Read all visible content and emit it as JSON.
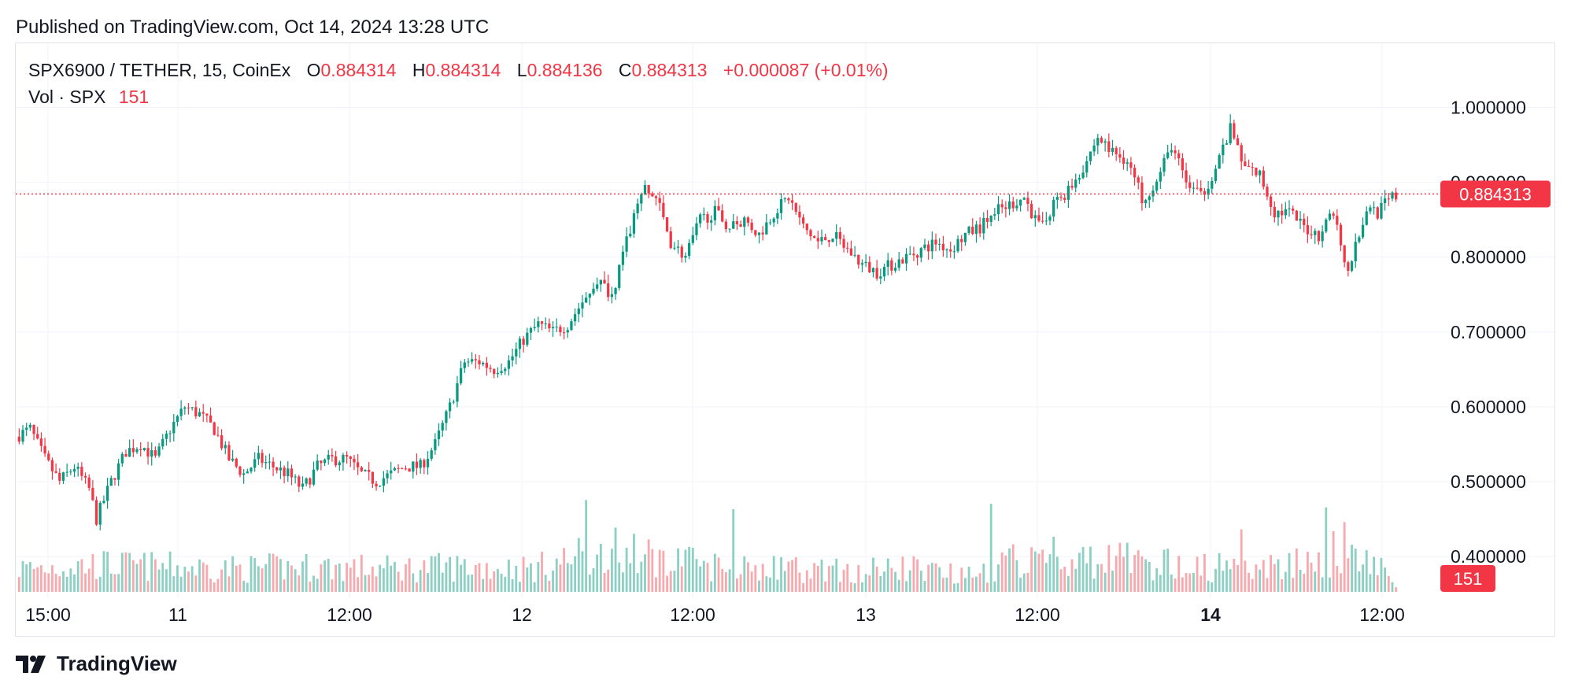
{
  "header": {
    "published": "Published on TradingView.com, Oct 14, 2024 13:28 UTC"
  },
  "legend": {
    "symbol": "SPX6900 / TETHER, 15, CoinEx",
    "o_label": "O",
    "o_value": "0.884314",
    "h_label": "H",
    "h_value": "0.884314",
    "l_label": "L",
    "l_value": "0.884136",
    "c_label": "C",
    "c_value": "0.884313",
    "change": "+0.000087 (+0.01%)",
    "vol_label": "Vol · SPX",
    "vol_value": "151"
  },
  "footer": {
    "brand": "TradingView"
  },
  "colors": {
    "up": "#089981",
    "down": "#f23645",
    "up_vol": "#8ccfc3",
    "down_vol": "#f7a9ad",
    "grid": "#f0f3fa",
    "price_line": "#f23645"
  },
  "chart_data": {
    "type": "candlestick",
    "symbol": "SPX6900 / TETHER",
    "interval": "15",
    "exchange": "CoinEx",
    "price_axis": {
      "ticks": [
        "1.000000",
        "0.900000",
        "0.800000",
        "0.700000",
        "0.600000",
        "0.500000",
        "0.400000"
      ],
      "range": [
        0.36,
        1.07
      ]
    },
    "time_axis": {
      "labels": [
        "15:00",
        "11",
        "12:00",
        "12",
        "12:00",
        "13",
        "12:00",
        "14",
        "12:00"
      ],
      "bold": [
        false,
        false,
        false,
        false,
        false,
        false,
        false,
        true,
        false
      ]
    },
    "last_price": "0.884313",
    "last_volume": "151",
    "price_path": [
      [
        0,
        0.56
      ],
      [
        4,
        0.57
      ],
      [
        8,
        0.53
      ],
      [
        12,
        0.5
      ],
      [
        16,
        0.52
      ],
      [
        20,
        0.49
      ],
      [
        22,
        0.45
      ],
      [
        26,
        0.5
      ],
      [
        30,
        0.54
      ],
      [
        34,
        0.55
      ],
      [
        38,
        0.53
      ],
      [
        42,
        0.57
      ],
      [
        46,
        0.6
      ],
      [
        50,
        0.59
      ],
      [
        54,
        0.57
      ],
      [
        58,
        0.53
      ],
      [
        62,
        0.51
      ],
      [
        66,
        0.53
      ],
      [
        70,
        0.52
      ],
      [
        74,
        0.51
      ],
      [
        78,
        0.49
      ],
      [
        82,
        0.52
      ],
      [
        86,
        0.53
      ],
      [
        90,
        0.53
      ],
      [
        94,
        0.51
      ],
      [
        98,
        0.5
      ],
      [
        102,
        0.51
      ],
      [
        106,
        0.52
      ],
      [
        110,
        0.52
      ],
      [
        114,
        0.55
      ],
      [
        118,
        0.6
      ],
      [
        122,
        0.66
      ],
      [
        126,
        0.66
      ],
      [
        130,
        0.65
      ],
      [
        134,
        0.66
      ],
      [
        138,
        0.69
      ],
      [
        142,
        0.71
      ],
      [
        146,
        0.7
      ],
      [
        150,
        0.71
      ],
      [
        154,
        0.74
      ],
      [
        158,
        0.77
      ],
      [
        162,
        0.75
      ],
      [
        166,
        0.82
      ],
      [
        170,
        0.89
      ],
      [
        174,
        0.88
      ],
      [
        178,
        0.82
      ],
      [
        182,
        0.8
      ],
      [
        186,
        0.85
      ],
      [
        190,
        0.86
      ],
      [
        194,
        0.84
      ],
      [
        198,
        0.85
      ],
      [
        202,
        0.83
      ],
      [
        206,
        0.86
      ],
      [
        210,
        0.88
      ],
      [
        214,
        0.84
      ],
      [
        218,
        0.82
      ],
      [
        222,
        0.83
      ],
      [
        226,
        0.81
      ],
      [
        230,
        0.79
      ],
      [
        234,
        0.78
      ],
      [
        238,
        0.79
      ],
      [
        242,
        0.8
      ],
      [
        246,
        0.81
      ],
      [
        250,
        0.82
      ],
      [
        254,
        0.81
      ],
      [
        258,
        0.83
      ],
      [
        262,
        0.84
      ],
      [
        266,
        0.86
      ],
      [
        270,
        0.87
      ],
      [
        274,
        0.88
      ],
      [
        278,
        0.84
      ],
      [
        282,
        0.87
      ],
      [
        286,
        0.89
      ],
      [
        290,
        0.92
      ],
      [
        294,
        0.96
      ],
      [
        298,
        0.94
      ],
      [
        302,
        0.93
      ],
      [
        306,
        0.88
      ],
      [
        310,
        0.9
      ],
      [
        314,
        0.95
      ],
      [
        318,
        0.9
      ],
      [
        322,
        0.88
      ],
      [
        326,
        0.92
      ],
      [
        330,
        0.97
      ],
      [
        334,
        0.92
      ],
      [
        338,
        0.91
      ],
      [
        342,
        0.86
      ],
      [
        346,
        0.86
      ],
      [
        350,
        0.84
      ],
      [
        354,
        0.83
      ],
      [
        358,
        0.86
      ],
      [
        362,
        0.78
      ],
      [
        364,
        0.82
      ],
      [
        368,
        0.87
      ],
      [
        370,
        0.86
      ],
      [
        374,
        0.88
      ]
    ],
    "volume_path": [
      [
        0,
        0.012
      ],
      [
        20,
        0.014
      ],
      [
        40,
        0.013
      ],
      [
        60,
        0.012
      ],
      [
        80,
        0.013
      ],
      [
        100,
        0.012
      ],
      [
        120,
        0.013
      ],
      [
        140,
        0.012
      ],
      [
        152,
        0.018
      ],
      [
        160,
        0.016
      ],
      [
        170,
        0.02
      ],
      [
        180,
        0.015
      ],
      [
        200,
        0.012
      ],
      [
        220,
        0.011
      ],
      [
        240,
        0.012
      ],
      [
        260,
        0.011
      ],
      [
        270,
        0.016
      ],
      [
        280,
        0.015
      ],
      [
        300,
        0.016
      ],
      [
        320,
        0.013
      ],
      [
        340,
        0.012
      ],
      [
        350,
        0.015
      ],
      [
        360,
        0.02
      ],
      [
        370,
        0.012
      ],
      [
        374,
        0.005
      ]
    ],
    "volume_spikes": [
      [
        154,
        0.05
      ],
      [
        162,
        0.035
      ],
      [
        194,
        0.045
      ],
      [
        264,
        0.048
      ],
      [
        276,
        0.022
      ],
      [
        281,
        0.03
      ],
      [
        332,
        0.034
      ],
      [
        355,
        0.046
      ],
      [
        357,
        0.033
      ],
      [
        360,
        0.038
      ]
    ],
    "volume_ylim": [
      0,
      0.06
    ]
  }
}
